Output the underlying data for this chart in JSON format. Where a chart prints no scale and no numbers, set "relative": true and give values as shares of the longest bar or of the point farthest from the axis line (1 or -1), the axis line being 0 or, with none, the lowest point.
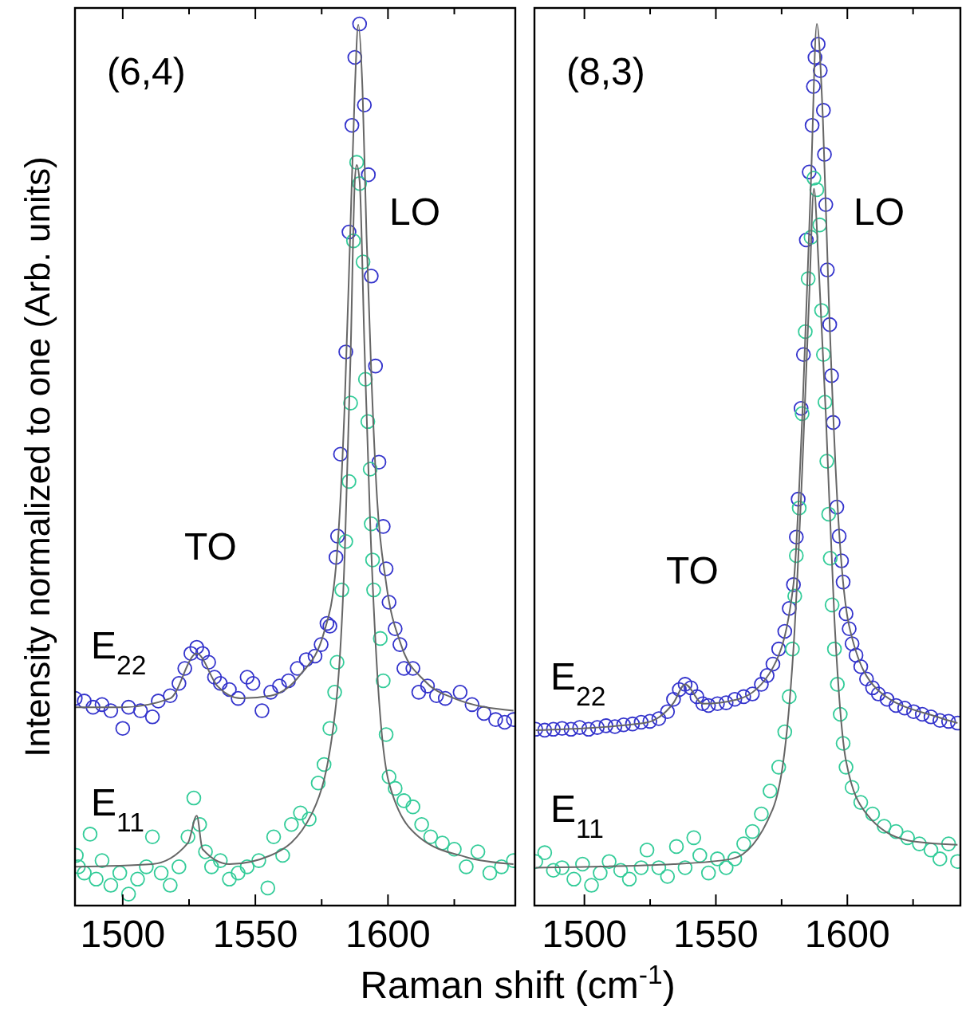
{
  "chart_data": [
    {
      "type": "scatter",
      "title": "(6,4)",
      "xlabel": "Raman shift (cm$^{-1}$)",
      "ylabel": "Intensity normalized to one (Arb. units)",
      "relative": true,
      "legend": false,
      "grid": false,
      "tick_labels": "x",
      "xlim": [
        1482,
        1648
      ],
      "xticks": [
        1500,
        {
          "value": 1525,
          "label": null
        },
        1550,
        {
          "value": 1575,
          "label": null
        },
        1600,
        {
          "value": 1625,
          "label": null
        }
      ],
      "annotations": [
        "TO",
        "LO"
      ],
      "series": [
        {
          "name": "E$_{22}$",
          "marker": "circle",
          "color": "#3333cc",
          "x": [
            1482.1,
            1485.5,
            1488.8,
            1492.2,
            1495.5,
            1500,
            1502.2,
            1506.7,
            1511.2,
            1513.4,
            1517.9,
            1521.2,
            1523.4,
            1525.7,
            1527.9,
            1530.1,
            1532.4,
            1534.6,
            1536.8,
            1540.2,
            1543.5,
            1546.9,
            1549.1,
            1552.5,
            1555.8,
            1559.1,
            1562.5,
            1565.8,
            1569.2,
            1572.5,
            1574.8,
            1577.0,
            1578.1,
            1580.4,
            1581.0,
            1582.1,
            1584.1,
            1585.3,
            1586.4,
            1587.5,
            1589.3,
            1591.1,
            1592.6,
            1593.7,
            1595.3,
            1596.6,
            1598.2,
            1599.3,
            1600.4,
            1602.7,
            1604.5,
            1606.0,
            1609.4,
            1611.6,
            1614.9,
            1618.3,
            1621.6,
            1627.2,
            1631.7,
            1636.2,
            1640.6,
            1644.0,
            1647.3
          ],
          "values": [
            0.235,
            0.232,
            0.225,
            0.228,
            0.221,
            0.201,
            0.225,
            0.221,
            0.214,
            0.232,
            0.238,
            0.252,
            0.269,
            0.286,
            0.293,
            0.286,
            0.276,
            0.259,
            0.252,
            0.245,
            0.235,
            0.259,
            0.252,
            0.221,
            0.242,
            0.249,
            0.255,
            0.269,
            0.279,
            0.283,
            0.296,
            0.32,
            0.317,
            0.395,
            0.419,
            0.512,
            0.628,
            0.764,
            0.885,
            0.962,
            1.0,
            0.908,
            0.829,
            0.714,
            0.612,
            0.503,
            0.43,
            0.382,
            0.344,
            0.314,
            0.296,
            0.269,
            0.269,
            0.242,
            0.249,
            0.238,
            0.235,
            0.242,
            0.228,
            0.218,
            0.211,
            0.208,
            0.211
          ]
        },
        {
          "name": "E$_{11}$",
          "marker": "circle",
          "color": "#33cc99",
          "x": [
            1482.5,
            1483.3,
            1485.5,
            1487.7,
            1490.0,
            1492.2,
            1495.5,
            1498.9,
            1502.2,
            1505.6,
            1508.9,
            1511.2,
            1514.5,
            1517.9,
            1521.2,
            1524.6,
            1526.8,
            1529.0,
            1531.2,
            1533.5,
            1536.8,
            1540.2,
            1543.5,
            1546.9,
            1551.3,
            1554.7,
            1556.9,
            1560.3,
            1563.6,
            1567.0,
            1570.3,
            1573.7,
            1575.9,
            1578.1,
            1579.9,
            1580.8,
            1582.6,
            1584.1,
            1585.3,
            1585.9,
            1587.0,
            1588.2,
            1589.3,
            1590.6,
            1591.5,
            1592.4,
            1593.3,
            1593.7,
            1594.2,
            1594.6,
            1597.1,
            1598.2,
            1599.3,
            1600.4,
            1602.7,
            1606.0,
            1609.4,
            1612.7,
            1616.1,
            1620.5,
            1625.0,
            1629.5,
            1633.9,
            1638.4,
            1642.8,
            1647.3
          ],
          "values": [
            0.057,
            0.044,
            0.037,
            0.081,
            0.03,
            0.051,
            0.023,
            0.037,
            0.013,
            0.03,
            0.044,
            0.078,
            0.037,
            0.023,
            0.044,
            0.078,
            0.122,
            0.092,
            0.061,
            0.044,
            0.051,
            0.03,
            0.037,
            0.044,
            0.051,
            0.02,
            0.078,
            0.057,
            0.092,
            0.105,
            0.098,
            0.139,
            0.16,
            0.201,
            0.242,
            0.276,
            0.358,
            0.413,
            0.481,
            0.57,
            0.754,
            0.843,
            0.819,
            0.73,
            0.597,
            0.549,
            0.495,
            0.433,
            0.392,
            0.358,
            0.303,
            0.255,
            0.194,
            0.146,
            0.133,
            0.119,
            0.112,
            0.092,
            0.078,
            0.071,
            0.064,
            0.044,
            0.061,
            0.037,
            0.044,
            0.051
          ]
        },
        {
          "type": "line",
          "color": "#666666",
          "x": [
            1482.1,
            1500,
            1517.9,
            1527.9,
            1535.7,
            1544.6,
            1555.8,
            1567.0,
            1575.9,
            1580.4,
            1583.7,
            1585.9,
            1587.5,
            1588.8,
            1590.4,
            1591.9,
            1593.7,
            1595.9,
            1599.3,
            1604.9,
            1613.8,
            1625.0,
            1647.3
          ],
          "values": [
            0.225,
            0.225,
            0.235,
            0.286,
            0.249,
            0.235,
            0.238,
            0.262,
            0.31,
            0.385,
            0.57,
            0.775,
            0.925,
            0.999,
            0.925,
            0.761,
            0.604,
            0.461,
            0.366,
            0.296,
            0.255,
            0.235,
            0.221
          ]
        },
        {
          "type": "line",
          "color": "#666666",
          "x": [
            1482.1,
            1511.2,
            1524.6,
            1527.9,
            1530.1,
            1540.2,
            1555.8,
            1571.4,
            1580.4,
            1583.7,
            1585.9,
            1587.5,
            1588.2,
            1589.3,
            1591.1,
            1593.3,
            1596.0,
            1600.4,
            1611.6,
            1629.5,
            1647.3
          ],
          "values": [
            0.044,
            0.047,
            0.071,
            0.102,
            0.064,
            0.047,
            0.057,
            0.105,
            0.228,
            0.399,
            0.624,
            0.822,
            0.84,
            0.822,
            0.638,
            0.433,
            0.262,
            0.139,
            0.078,
            0.055,
            0.047
          ]
        }
      ]
    },
    {
      "type": "scatter",
      "title": "(8,3)",
      "relative": true,
      "legend": false,
      "grid": false,
      "tick_labels": "x",
      "xlim": [
        1481,
        1643
      ],
      "xticks": [
        1500,
        {
          "value": 1525,
          "label": null
        },
        1550,
        {
          "value": 1575,
          "label": null
        },
        1600,
        {
          "value": 1625,
          "label": null
        }
      ],
      "annotations": [
        "TO",
        "LO"
      ],
      "series": [
        {
          "name": "E$_{22}$",
          "marker": "circle",
          "color": "#3333cc",
          "x": [
            1481.5,
            1484.9,
            1488.2,
            1491.5,
            1494.9,
            1498.2,
            1501.6,
            1504.9,
            1508.2,
            1511.6,
            1514.9,
            1518.3,
            1521.6,
            1524.9,
            1528.3,
            1531.6,
            1533.9,
            1536.1,
            1538.3,
            1540.5,
            1542.8,
            1545.0,
            1547.2,
            1550.6,
            1553.9,
            1557.2,
            1560.6,
            1563.9,
            1567.3,
            1569.5,
            1571.7,
            1573.9,
            1576.2,
            1577.9,
            1579.5,
            1580.6,
            1581.3,
            1582.4,
            1583.3,
            1584.4,
            1585.5,
            1586.6,
            1587.1,
            1587.7,
            1588.9,
            1589.7,
            1590.9,
            1591.3,
            1591.8,
            1592.4,
            1593.3,
            1594.0,
            1594.6,
            1596.0,
            1596.9,
            1597.8,
            1598.4,
            1599.5,
            1600.7,
            1601.8,
            1603.3,
            1605.1,
            1607.3,
            1609.6,
            1611.8,
            1615.1,
            1618.5,
            1621.8,
            1625.2,
            1628.5,
            1631.8,
            1635.2,
            1638.5,
            1641.9
          ],
          "values": [
            0.2,
            0.199,
            0.2,
            0.201,
            0.2,
            0.202,
            0.2,
            0.202,
            0.204,
            0.203,
            0.205,
            0.206,
            0.208,
            0.209,
            0.212,
            0.22,
            0.234,
            0.245,
            0.251,
            0.247,
            0.237,
            0.229,
            0.227,
            0.229,
            0.23,
            0.234,
            0.237,
            0.24,
            0.251,
            0.261,
            0.274,
            0.291,
            0.311,
            0.337,
            0.364,
            0.418,
            0.461,
            0.564,
            0.625,
            0.755,
            0.832,
            0.885,
            0.929,
            0.962,
            0.977,
            0.947,
            0.902,
            0.852,
            0.795,
            0.721,
            0.659,
            0.601,
            0.548,
            0.452,
            0.419,
            0.391,
            0.367,
            0.331,
            0.314,
            0.297,
            0.284,
            0.271,
            0.257,
            0.247,
            0.24,
            0.234,
            0.227,
            0.224,
            0.22,
            0.217,
            0.214,
            0.21,
            0.209,
            0.207
          ]
        },
        {
          "name": "E$_{11}$",
          "marker": "circle",
          "color": "#33cc99",
          "x": [
            1481.5,
            1484.9,
            1488.2,
            1491.5,
            1496.0,
            1499.3,
            1502.7,
            1506.0,
            1509.4,
            1513.8,
            1517.1,
            1521.6,
            1523.8,
            1528.3,
            1531.6,
            1535.0,
            1538.3,
            1541.6,
            1543.9,
            1547.2,
            1550.6,
            1553.9,
            1557.2,
            1560.6,
            1563.9,
            1567.3,
            1570.6,
            1573.9,
            1576.2,
            1577.9,
            1579.1,
            1580.0,
            1580.6,
            1581.7,
            1582.8,
            1584.0,
            1585.1,
            1586.2,
            1587.3,
            1588.4,
            1589.5,
            1590.2,
            1590.9,
            1591.5,
            1592.2,
            1592.9,
            1593.5,
            1594.2,
            1595.1,
            1596.2,
            1597.3,
            1598.4,
            1599.5,
            1601.8,
            1605.1,
            1609.6,
            1614.0,
            1618.5,
            1622.9,
            1627.4,
            1631.8,
            1635.2,
            1638.5,
            1641.9
          ],
          "values": [
            0.05,
            0.06,
            0.04,
            0.043,
            0.03,
            0.047,
            0.023,
            0.037,
            0.05,
            0.04,
            0.03,
            0.043,
            0.063,
            0.043,
            0.033,
            0.067,
            0.043,
            0.077,
            0.057,
            0.037,
            0.053,
            0.043,
            0.053,
            0.07,
            0.084,
            0.104,
            0.13,
            0.157,
            0.197,
            0.237,
            0.291,
            0.351,
            0.397,
            0.451,
            0.558,
            0.651,
            0.711,
            0.758,
            0.825,
            0.812,
            0.772,
            0.675,
            0.625,
            0.571,
            0.504,
            0.444,
            0.394,
            0.341,
            0.291,
            0.251,
            0.217,
            0.184,
            0.157,
            0.134,
            0.117,
            0.104,
            0.09,
            0.084,
            0.077,
            0.07,
            0.063,
            0.053,
            0.07,
            0.05
          ]
        },
        {
          "type": "line",
          "color": "#666666",
          "x": [
            1481.5,
            1522.7,
            1533.9,
            1538.3,
            1545.0,
            1558.4,
            1571.7,
            1579.5,
            1582.9,
            1586.2,
            1588.4,
            1590.7,
            1592.9,
            1596.2,
            1600.7,
            1611.8,
            1634.1,
            1641.9
          ],
          "values": [
            0.199,
            0.207,
            0.23,
            0.251,
            0.229,
            0.234,
            0.27,
            0.364,
            0.557,
            0.825,
            1.0,
            0.892,
            0.691,
            0.458,
            0.317,
            0.244,
            0.214,
            0.207
          ]
        },
        {
          "type": "line",
          "color": "#666666",
          "x": [
            1481.5,
            1533.9,
            1556.1,
            1571.7,
            1579.5,
            1582.8,
            1585.5,
            1587.3,
            1589.1,
            1591.8,
            1595.1,
            1599.5,
            1607.3,
            1622.9,
            1641.9
          ],
          "values": [
            0.043,
            0.047,
            0.053,
            0.11,
            0.291,
            0.491,
            0.691,
            0.813,
            0.725,
            0.558,
            0.324,
            0.164,
            0.104,
            0.074,
            0.069
          ]
        }
      ]
    }
  ]
}
